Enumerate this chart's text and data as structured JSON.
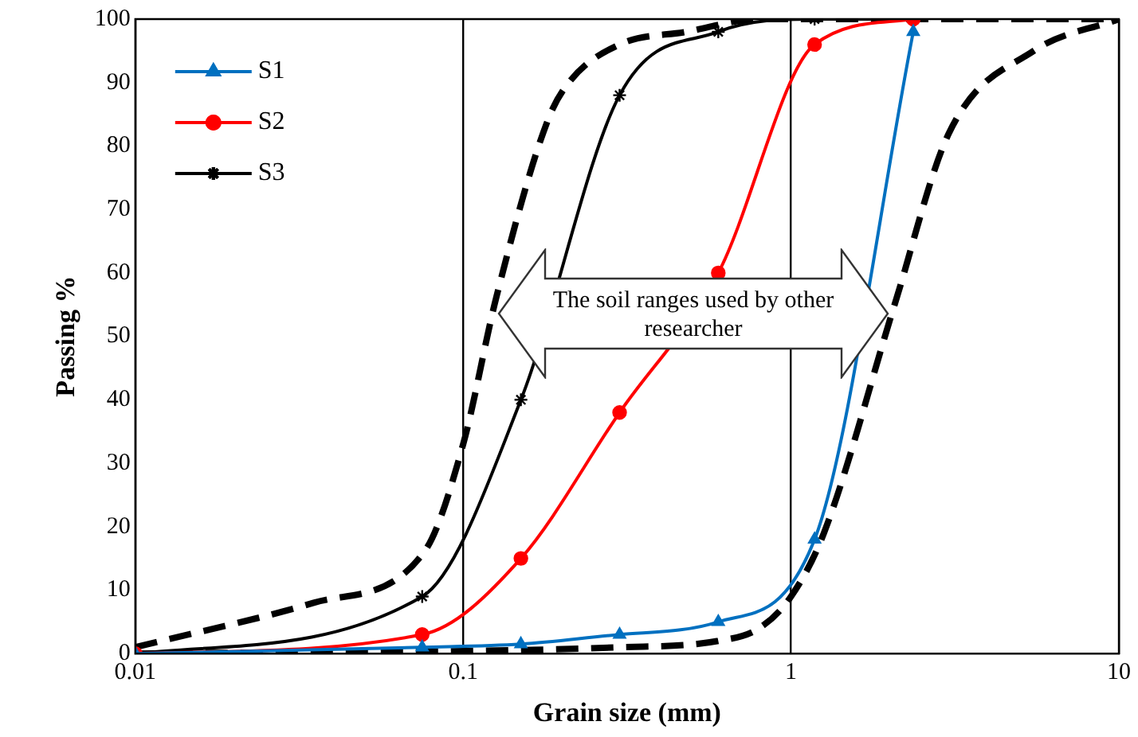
{
  "chart_data": {
    "type": "line",
    "xlabel": "Grain size (mm)",
    "ylabel": "Passing %",
    "log": "x",
    "grid": "x",
    "legend": "top left",
    "xlim": [
      0.01,
      10
    ],
    "xticks": [
      0.01,
      0.1,
      1,
      10
    ],
    "ylim": [
      0,
      100
    ],
    "yticks": [
      0,
      10,
      20,
      30,
      40,
      50,
      60,
      70,
      80,
      90,
      100
    ],
    "series": [
      {
        "name": "S1",
        "color": "#0070c0",
        "marker": "triangle",
        "x": [
          0.01,
          0.075,
          0.15,
          0.3,
          0.6,
          1.18,
          2.36
        ],
        "values": [
          0,
          1,
          1.5,
          3,
          5,
          18,
          98
        ]
      },
      {
        "name": "S2",
        "color": "#ff0000",
        "marker": "circle",
        "x": [
          0.01,
          0.075,
          0.15,
          0.3,
          0.6,
          1.18,
          2.36
        ],
        "values": [
          0,
          3,
          15,
          38,
          60,
          96,
          100
        ]
      },
      {
        "name": "S3",
        "color": "#000000",
        "marker": "cross",
        "x": [
          0.01,
          0.075,
          0.15,
          0.3,
          0.6,
          1.18,
          2.36
        ],
        "values": [
          0,
          9,
          40,
          88,
          98,
          100,
          100
        ]
      },
      {
        "color": "#000000",
        "marker": "none",
        "line_style": "dashed",
        "x": [
          0.01,
          0.035,
          0.076,
          0.1,
          0.126,
          0.181,
          0.21,
          0.3,
          0.48,
          0.8,
          10
        ],
        "values": [
          1,
          8,
          16,
          33,
          56,
          84,
          90,
          96,
          98,
          100,
          100
        ]
      },
      {
        "color": "#000000",
        "marker": "none",
        "line_style": "dashed",
        "x": [
          0.01,
          0.3,
          0.6,
          0.8,
          1,
          1.26,
          2.07,
          3.03,
          5.5,
          10
        ],
        "values": [
          0,
          1,
          2,
          4,
          9,
          19,
          55,
          82,
          95,
          100
        ]
      }
    ],
    "annotations": [
      "The soil ranges used by other researcher"
    ]
  }
}
